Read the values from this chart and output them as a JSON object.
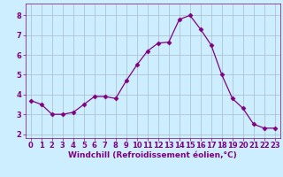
{
  "x": [
    0,
    1,
    2,
    3,
    4,
    5,
    6,
    7,
    8,
    9,
    10,
    11,
    12,
    13,
    14,
    15,
    16,
    17,
    18,
    19,
    20,
    21,
    22,
    23
  ],
  "y": [
    3.7,
    3.5,
    3.0,
    3.0,
    3.1,
    3.5,
    3.9,
    3.9,
    3.8,
    4.7,
    5.5,
    6.2,
    6.6,
    6.65,
    7.8,
    8.0,
    7.3,
    6.5,
    5.0,
    3.8,
    3.3,
    2.5,
    2.3,
    2.3
  ],
  "line_color": "#800080",
  "marker": "D",
  "marker_size": 2.5,
  "background_color": "#cceeff",
  "grid_color": "#aabbcc",
  "xlabel": "Windchill (Refroidissement éolien,°C)",
  "xlabel_color": "#800080",
  "xlabel_fontsize": 6.5,
  "tick_label_color": "#800080",
  "tick_fontsize": 6,
  "xlim": [
    -0.5,
    23.5
  ],
  "ylim": [
    1.8,
    8.6
  ],
  "yticks": [
    2,
    3,
    4,
    5,
    6,
    7,
    8
  ],
  "xticks": [
    0,
    1,
    2,
    3,
    4,
    5,
    6,
    7,
    8,
    9,
    10,
    11,
    12,
    13,
    14,
    15,
    16,
    17,
    18,
    19,
    20,
    21,
    22,
    23
  ]
}
